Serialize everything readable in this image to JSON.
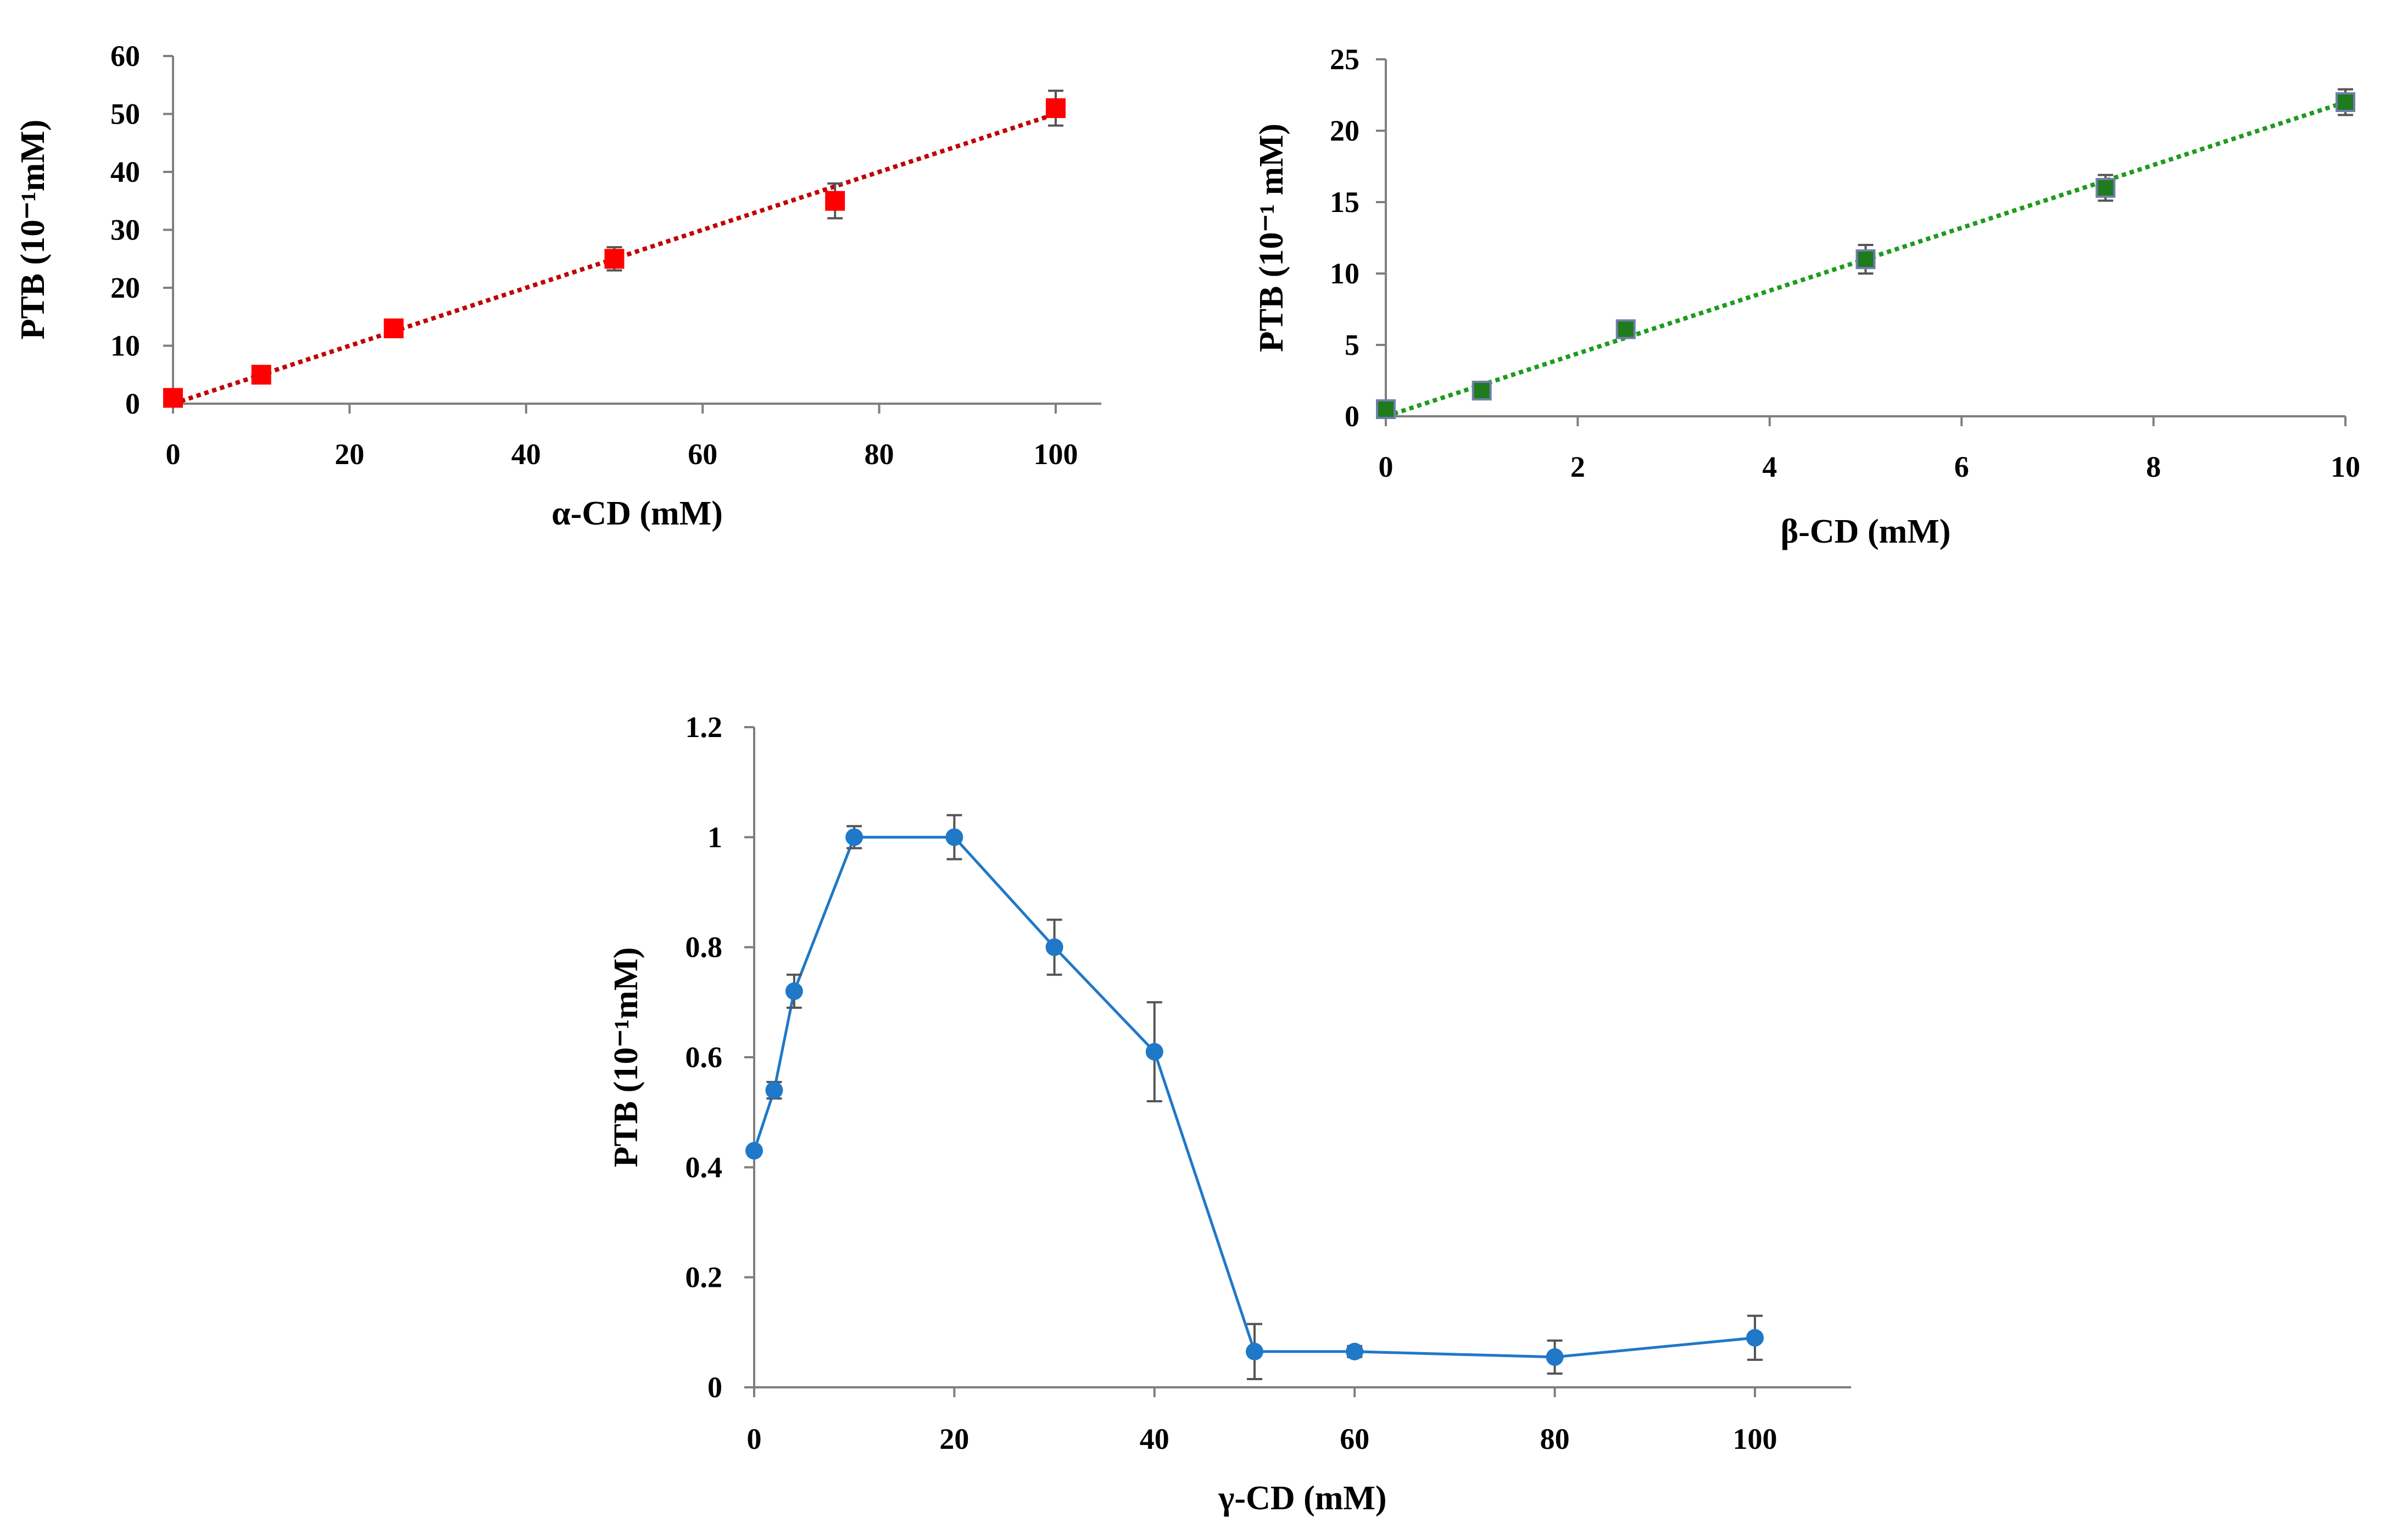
{
  "chart_data": [
    {
      "id": "alpha",
      "type": "scatter",
      "trendline": "linear-dotted",
      "xlabel": "α-CD (mM)",
      "ylabel": "PTB (10⁻¹mM)",
      "xlim": [
        0,
        105
      ],
      "ylim": [
        0,
        60
      ],
      "xticks": [
        0,
        20,
        40,
        60,
        80,
        100
      ],
      "yticks": [
        0,
        10,
        20,
        30,
        40,
        50,
        60
      ],
      "marker": "square",
      "color": "#ff0000",
      "trend_color": "#c00000",
      "series": [
        {
          "name": "α-CD",
          "x": [
            0,
            10,
            25,
            50,
            75,
            100
          ],
          "y": [
            1,
            5,
            13,
            25,
            35,
            51
          ],
          "err": [
            0,
            0,
            0,
            2,
            3,
            3
          ]
        }
      ],
      "trend": {
        "x": [
          0,
          100
        ],
        "y": [
          0,
          50
        ]
      }
    },
    {
      "id": "beta",
      "type": "scatter",
      "trendline": "linear-dotted",
      "xlabel": "β-CD (mM)",
      "ylabel": "PTB (10⁻¹ mM)",
      "xlim": [
        0,
        10
      ],
      "ylim": [
        0,
        25
      ],
      "xticks": [
        0,
        2,
        4,
        6,
        8,
        10
      ],
      "yticks": [
        0,
        5,
        10,
        15,
        20,
        25
      ],
      "marker": "square",
      "color": "#1e7b1e",
      "trend_color": "#1e9b1e",
      "series": [
        {
          "name": "β-CD",
          "x": [
            0,
            1,
            2.5,
            5,
            7.5,
            10
          ],
          "y": [
            0.5,
            1.8,
            6.1,
            11,
            16,
            22
          ],
          "err": [
            0.4,
            0.6,
            0.6,
            1,
            0.9,
            0.9
          ]
        }
      ],
      "trend": {
        "x": [
          0,
          10
        ],
        "y": [
          0,
          22
        ]
      }
    },
    {
      "id": "gamma",
      "type": "line",
      "xlabel": "γ-CD (mM)",
      "ylabel": "PTB (10⁻¹mM)",
      "xlim": [
        0,
        110
      ],
      "ylim": [
        0,
        1.2
      ],
      "xticks": [
        0,
        20,
        40,
        60,
        80,
        100
      ],
      "yticks": [
        0,
        0.2,
        0.4,
        0.6,
        0.8,
        1,
        1.2
      ],
      "ytick_labels": [
        "0",
        "0.2",
        "0.4",
        "0.6",
        "0.8",
        "1",
        "1.2"
      ],
      "marker": "circle",
      "color": "#1f78c8",
      "series": [
        {
          "name": "γ-CD",
          "x": [
            0,
            2,
            4,
            10,
            20,
            30,
            40,
            50,
            60,
            80,
            100
          ],
          "y": [
            0.43,
            0.54,
            0.72,
            1.0,
            1.0,
            0.8,
            0.61,
            0.065,
            0.065,
            0.055,
            0.09
          ],
          "err": [
            0,
            0.015,
            0.03,
            0.02,
            0.04,
            0.05,
            0.09,
            0.05,
            0.01,
            0.03,
            0.04
          ]
        }
      ]
    }
  ]
}
